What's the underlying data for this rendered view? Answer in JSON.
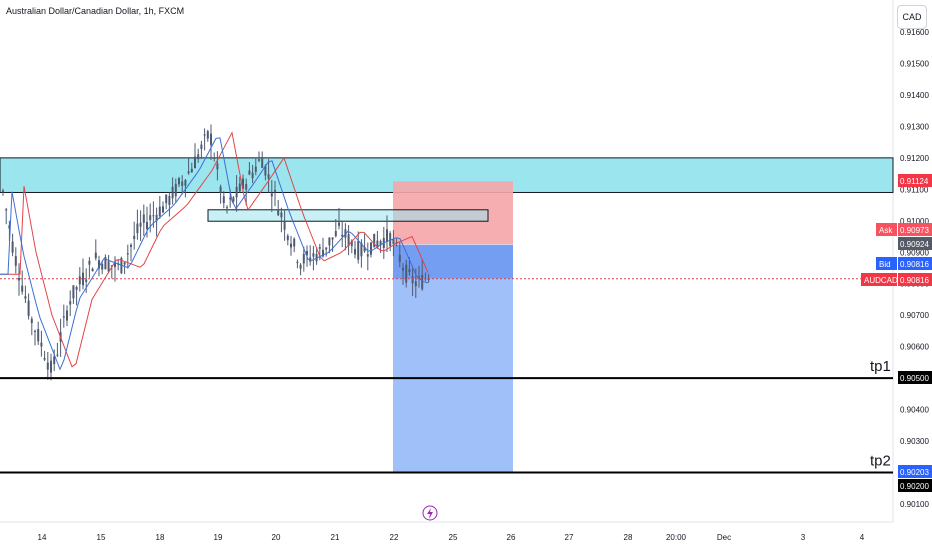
{
  "header": {
    "title": "Australian Dollar/Canadian Dollar, 1h, FXCM",
    "currency_button": "CAD"
  },
  "colors": {
    "zone_fill": "#9be5ee",
    "stop_fill": "#f6a5a8",
    "target_fill": "#8fb5f9",
    "target_dark": "#5b8def",
    "ema_red": "#e0454a",
    "ema_blue": "#3d6fd6",
    "candle": "#4d5a70",
    "price_line": "#e0454a"
  },
  "chart_data": {
    "type": "candlestick",
    "title": "Australian Dollar/Canadian Dollar, 1h, FXCM",
    "ylim": [
      0.90055,
      0.91695
    ],
    "y_ticks": [
      "0.91600",
      "0.91500",
      "0.91400",
      "0.91300",
      "0.91200",
      "0.91100",
      "0.91000",
      "0.90900",
      "0.90800",
      "0.90700",
      "0.90600",
      "0.90500",
      "0.90400",
      "0.90300",
      "0.90200",
      "0.90100"
    ],
    "x_ticks": [
      "14",
      "15",
      "18",
      "19",
      "20",
      "21",
      "22",
      "25",
      "26",
      "27",
      "28",
      "20:00",
      "Dec",
      "3",
      "4"
    ],
    "price_tags": [
      {
        "label": "",
        "value": "0.91124",
        "color": "#f23645"
      },
      {
        "label": "Ask",
        "value": "0.90973",
        "color": "#f7525f"
      },
      {
        "label": "",
        "value": "0.90924",
        "color": "#555a66"
      },
      {
        "label": "Bid",
        "value": "0.90816",
        "color": "#2962ff"
      },
      {
        "label": "AUDCAD",
        "value": "0.90816",
        "color": "#f23645"
      },
      {
        "label": "",
        "value": "0.90500",
        "color": "#000000"
      },
      {
        "label": "",
        "value": "0.90203",
        "color": "#2962ff"
      },
      {
        "label": "",
        "value": "0.90200",
        "color": "#000000"
      }
    ],
    "levels": [
      {
        "name": "tp1",
        "value": 0.905
      },
      {
        "name": "tp2",
        "value": 0.902
      }
    ],
    "zones": [
      {
        "name": "supply-zone",
        "top": 0.912,
        "bottom": 0.9109
      },
      {
        "name": "small-zone",
        "top": 0.91035,
        "bottom": 0.91005
      }
    ],
    "position": {
      "type": "short",
      "entry": 0.90924,
      "stop": 0.91124,
      "target": 0.90203
    },
    "current_price": 0.90816
  }
}
